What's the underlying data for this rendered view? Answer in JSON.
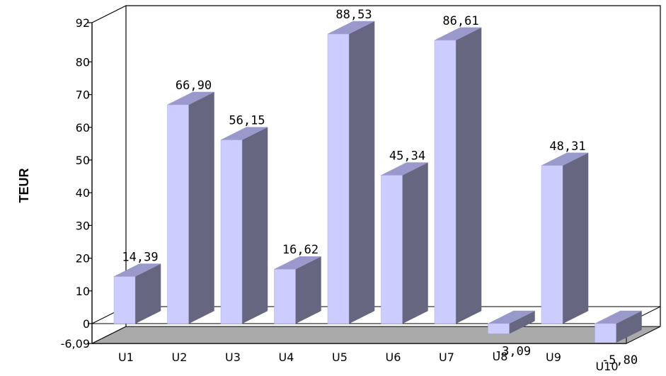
{
  "chart_data": {
    "type": "bar",
    "categories": [
      "U1",
      "U2",
      "U3",
      "U4",
      "U5",
      "U6",
      "U7",
      "U8",
      "U9",
      "U10"
    ],
    "values": [
      14.39,
      66.9,
      56.15,
      16.62,
      88.53,
      45.34,
      86.61,
      -3.09,
      48.31,
      -5.8
    ],
    "value_labels": [
      "14,39",
      "66,90",
      "56,15",
      "16,62",
      "88,53",
      "45,34",
      "86,61",
      "-3,09",
      "48,31",
      "-5,80"
    ],
    "ylabel": "TEUR",
    "ylim": [
      -6.09,
      92
    ],
    "y_ticks": [
      "92",
      "80",
      "70",
      "60",
      "50",
      "40",
      "30",
      "20",
      "10",
      "0",
      "-6,09"
    ],
    "y_tick_values": [
      92,
      80,
      70,
      60,
      50,
      40,
      30,
      20,
      10,
      0,
      -6.09
    ],
    "style": "3d",
    "grid": false,
    "colors": {
      "bar_front": "#ccccff",
      "bar_side": "#666680",
      "bar_top": "#9999cc",
      "floor": "#aaaaaa",
      "outline": "#000000"
    }
  }
}
